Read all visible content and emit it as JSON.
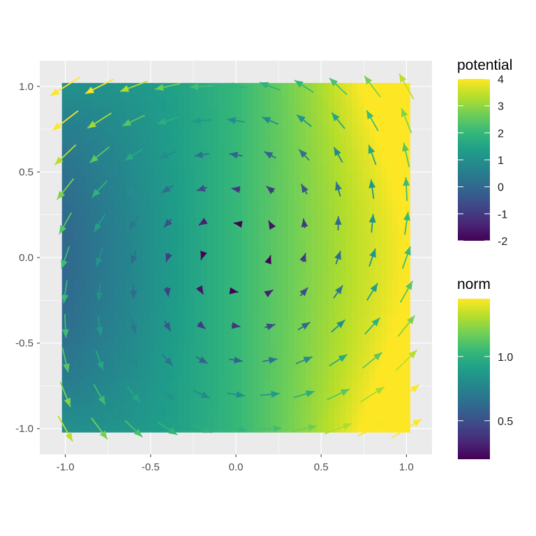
{
  "chart_data": {
    "type": "vector-field",
    "title": "",
    "xlabel": "",
    "ylabel": "",
    "xlim": [
      -1.15,
      1.15
    ],
    "ylim": [
      -1.15,
      1.15
    ],
    "x_ticks": [
      -1.0,
      -0.5,
      0.0,
      0.5,
      1.0
    ],
    "y_ticks": [
      -1.0,
      -0.5,
      0.0,
      0.5,
      1.0
    ],
    "x_tick_labels": [
      "-1.0",
      "-0.5",
      "0.0",
      "0.5",
      "1.0"
    ],
    "y_tick_labels": [
      "-1.0",
      "-0.5",
      "0.0",
      "0.5",
      "1.0"
    ],
    "grid": true,
    "background": "#ebebeb",
    "grid_color": "#ffffff",
    "field_description": "potential = 2 + 2x + x^2*y^2 over x,y in [-1,1]; arrows show vector field (-y, x) plus gradient of potential scaled",
    "potential_range": [
      -2,
      4
    ],
    "norm_range": [
      0.2,
      1.45
    ],
    "grid_x": [
      -1.0,
      -0.8,
      -0.6,
      -0.4,
      -0.2,
      0.0,
      0.2,
      0.4,
      0.6,
      0.8,
      1.0
    ],
    "grid_y": [
      -1.0,
      -0.8,
      -0.6,
      -0.4,
      -0.2,
      0.0,
      0.2,
      0.4,
      0.6,
      0.8,
      1.0
    ],
    "legend": [
      {
        "title": "potential",
        "labels": [
          "4",
          "3",
          "2",
          "1",
          "0",
          "-1",
          "-2"
        ],
        "values": [
          4,
          3,
          2,
          1,
          0,
          -1,
          -2
        ]
      },
      {
        "title": "norm",
        "labels": [
          "1.0",
          "0.5"
        ],
        "values": [
          1.0,
          0.5
        ]
      }
    ],
    "legend_placement": "right"
  },
  "colors": {
    "viridis": [
      "#440154",
      "#482878",
      "#3e4a89",
      "#31688e",
      "#26828e",
      "#1f9e89",
      "#35b779",
      "#6ece58",
      "#b5de2b",
      "#fde725"
    ]
  }
}
